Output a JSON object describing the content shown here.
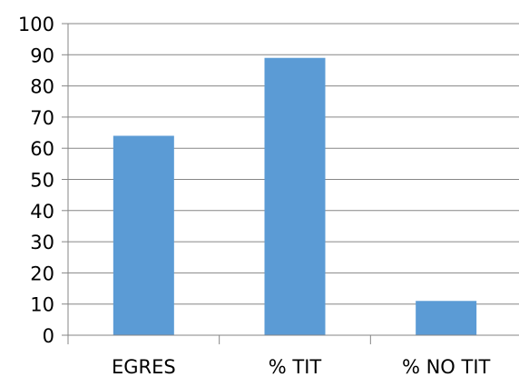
{
  "chart_data": {
    "type": "bar",
    "categories": [
      "EGRES",
      "% TIT",
      "% NO TIT"
    ],
    "values": [
      64,
      89,
      11
    ],
    "ylim": [
      0,
      100
    ],
    "yticks": [
      0,
      10,
      20,
      30,
      40,
      50,
      60,
      70,
      80,
      90,
      100
    ],
    "grid": true,
    "legend": "none",
    "bar_color": "#5b9bd5",
    "grid_color": "#868686"
  }
}
